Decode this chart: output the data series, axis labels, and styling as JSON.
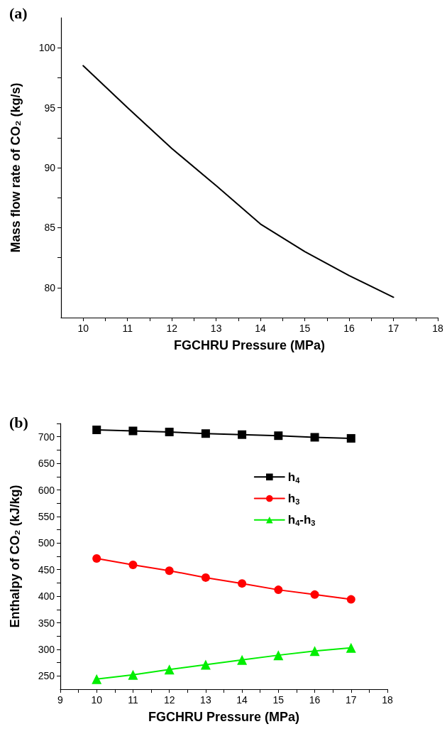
{
  "chart_data": [
    {
      "type": "line",
      "title": "(a)",
      "xlabel": "FGCHRU Pressure (MPa)",
      "ylabel": "Mass flow rate of CO₂ (kg/s)",
      "x": [
        10,
        11,
        12,
        13,
        14,
        15,
        16,
        17
      ],
      "series": [
        {
          "color": "#000000",
          "values": [
            98.5,
            95.0,
            91.6,
            88.5,
            85.3,
            83.0,
            81.0,
            79.2
          ]
        }
      ],
      "xlim": [
        9.5,
        18
      ],
      "xticks": [
        10,
        11,
        12,
        13,
        14,
        15,
        16,
        17,
        18,
        {
          "value": 10.5,
          "label": null
        },
        {
          "value": 11.5,
          "label": null
        },
        {
          "value": 12.5,
          "label": null
        },
        {
          "value": 13.5,
          "label": null
        },
        {
          "value": 14.5,
          "label": null
        },
        {
          "value": 15.5,
          "label": null
        },
        {
          "value": 16.5,
          "label": null
        },
        {
          "value": 17.5,
          "label": null
        }
      ],
      "ylim": [
        77.5,
        102.5
      ],
      "yticks": [
        80,
        85,
        90,
        95,
        100,
        {
          "value": 82.5,
          "label": null
        },
        {
          "value": 87.5,
          "label": null
        },
        {
          "value": 92.5,
          "label": null
        },
        {
          "value": 97.5,
          "label": null
        }
      ],
      "marker": "none",
      "line_style": "solid",
      "grid": false,
      "legend": false
    },
    {
      "type": "line",
      "title": "(b)",
      "xlabel": "FGCHRU Pressure (MPa)",
      "ylabel": "Enthalpy of CO₂ (kJ/kg)",
      "x": [
        10,
        11,
        12,
        13,
        14,
        15,
        16,
        17
      ],
      "series": [
        {
          "name": "h$_{4}$",
          "color": "#000000",
          "marker": "square",
          "values": [
            713,
            711,
            709,
            706,
            704,
            702,
            699,
            697
          ]
        },
        {
          "name": "h$_{3}$",
          "color": "#ff0000",
          "marker": "circle",
          "values": [
            471,
            459,
            448,
            435,
            424,
            412,
            403,
            394
          ]
        },
        {
          "name": "h$_{4}$-h$_{3}$",
          "color": "#00ee00",
          "marker": "triangle",
          "values": [
            244,
            252,
            262,
            271,
            280,
            289,
            297,
            303
          ]
        }
      ],
      "xlim": [
        9,
        18
      ],
      "xticks": [
        9,
        10,
        11,
        12,
        13,
        14,
        15,
        16,
        17,
        18,
        {
          "value": 9.5,
          "label": null
        },
        {
          "value": 10.5,
          "label": null
        },
        {
          "value": 11.5,
          "label": null
        },
        {
          "value": 12.5,
          "label": null
        },
        {
          "value": 13.5,
          "label": null
        },
        {
          "value": 14.5,
          "label": null
        },
        {
          "value": 15.5,
          "label": null
        },
        {
          "value": 16.5,
          "label": null
        },
        {
          "value": 17.5,
          "label": null
        }
      ],
      "ylim": [
        225,
        725
      ],
      "yticks": [
        250,
        300,
        350,
        400,
        450,
        500,
        550,
        600,
        650,
        700,
        {
          "value": 275,
          "label": null
        },
        {
          "value": 325,
          "label": null
        },
        {
          "value": 375,
          "label": null
        },
        {
          "value": 425,
          "label": null
        },
        {
          "value": 475,
          "label": null
        },
        {
          "value": 525,
          "label": null
        },
        {
          "value": 575,
          "label": null
        },
        {
          "value": 625,
          "label": null
        },
        {
          "value": 675,
          "label": null
        },
        {
          "value": 725,
          "label": null
        }
      ],
      "line_style": "solid",
      "grid": false,
      "legend": "right"
    }
  ]
}
